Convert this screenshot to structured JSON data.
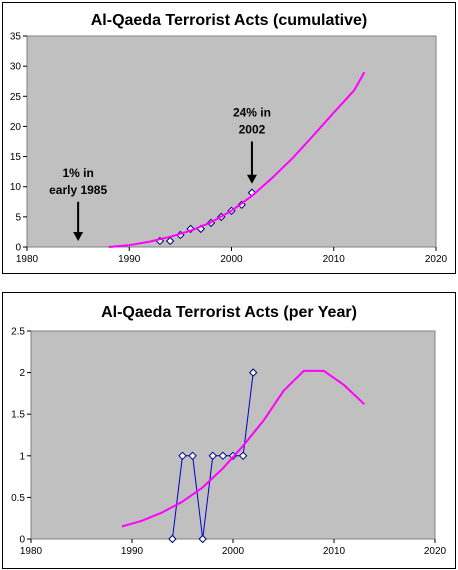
{
  "chart_data": [
    {
      "type": "scatter",
      "title": "Al-Qaeda Terrorist Acts (cumulative)",
      "xlabel": "",
      "ylabel": "",
      "xlim": [
        1980,
        2020
      ],
      "ylim": [
        0,
        35
      ],
      "x_ticks": [
        "1980",
        "1990",
        "2000",
        "2010",
        "2020"
      ],
      "y_ticks": [
        "0",
        "5",
        "10",
        "15",
        "20",
        "25",
        "30",
        "35"
      ],
      "grid": false,
      "plot_background": "#c0c0c0",
      "series": [
        {
          "kind": "markers",
          "color": "#000080",
          "points": [
            [
              1993,
              1
            ],
            [
              1994,
              1
            ],
            [
              1995,
              2
            ],
            [
              1996,
              3
            ],
            [
              1997,
              3
            ],
            [
              1998,
              4
            ],
            [
              1999,
              5
            ],
            [
              2000,
              6
            ],
            [
              2001,
              7
            ],
            [
              2002,
              9
            ]
          ]
        },
        {
          "kind": "curve",
          "color": "#ff00ff",
          "points": [
            [
              1988,
              0
            ],
            [
              1990,
              0.3
            ],
            [
              1992,
              0.9
            ],
            [
              1994,
              1.7
            ],
            [
              1996,
              2.7
            ],
            [
              1998,
              4.1
            ],
            [
              2000,
              6.0
            ],
            [
              2002,
              8.5
            ],
            [
              2004,
              11.5
            ],
            [
              2006,
              14.8
            ],
            [
              2008,
              18.5
            ],
            [
              2010,
              22.3
            ],
            [
              2012,
              26.0
            ],
            [
              2013,
              29.0
            ]
          ]
        }
      ],
      "annotations": [
        {
          "lines": [
            "1% in",
            "early 1985"
          ],
          "arrow_x": 1985,
          "arrow_from_y": 7.5,
          "arrow_to_y": 1.0
        },
        {
          "lines": [
            "24% in",
            "2002"
          ],
          "arrow_x": 2002,
          "arrow_from_y": 17.5,
          "arrow_to_y": 10.5
        }
      ]
    },
    {
      "type": "line",
      "title": "Al-Qaeda Terrorist Acts (per Year)",
      "xlabel": "",
      "ylabel": "",
      "xlim": [
        1980,
        2020
      ],
      "ylim": [
        0,
        2.5
      ],
      "x_ticks": [
        "1980",
        "1990",
        "2000",
        "2010",
        "2020"
      ],
      "y_ticks": [
        "0",
        "0.5",
        "1",
        "1.5",
        "2",
        "2.5"
      ],
      "grid": false,
      "plot_background": "#c0c0c0",
      "series": [
        {
          "kind": "line-markers",
          "color": "#0000cc",
          "points": [
            [
              1994,
              0
            ],
            [
              1995,
              1
            ],
            [
              1996,
              1
            ],
            [
              1997,
              0
            ],
            [
              1998,
              1
            ],
            [
              1999,
              1
            ],
            [
              2000,
              1
            ],
            [
              2001,
              1
            ],
            [
              2002,
              2
            ]
          ]
        },
        {
          "kind": "curve",
          "color": "#ff00ff",
          "points": [
            [
              1989,
              0.15
            ],
            [
              1991,
              0.22
            ],
            [
              1993,
              0.32
            ],
            [
              1995,
              0.45
            ],
            [
              1997,
              0.62
            ],
            [
              1999,
              0.85
            ],
            [
              2001,
              1.12
            ],
            [
              2003,
              1.42
            ],
            [
              2005,
              1.78
            ],
            [
              2007,
              2.02
            ],
            [
              2009,
              2.02
            ],
            [
              2011,
              1.85
            ],
            [
              2013,
              1.62
            ]
          ]
        }
      ],
      "annotations": []
    }
  ]
}
